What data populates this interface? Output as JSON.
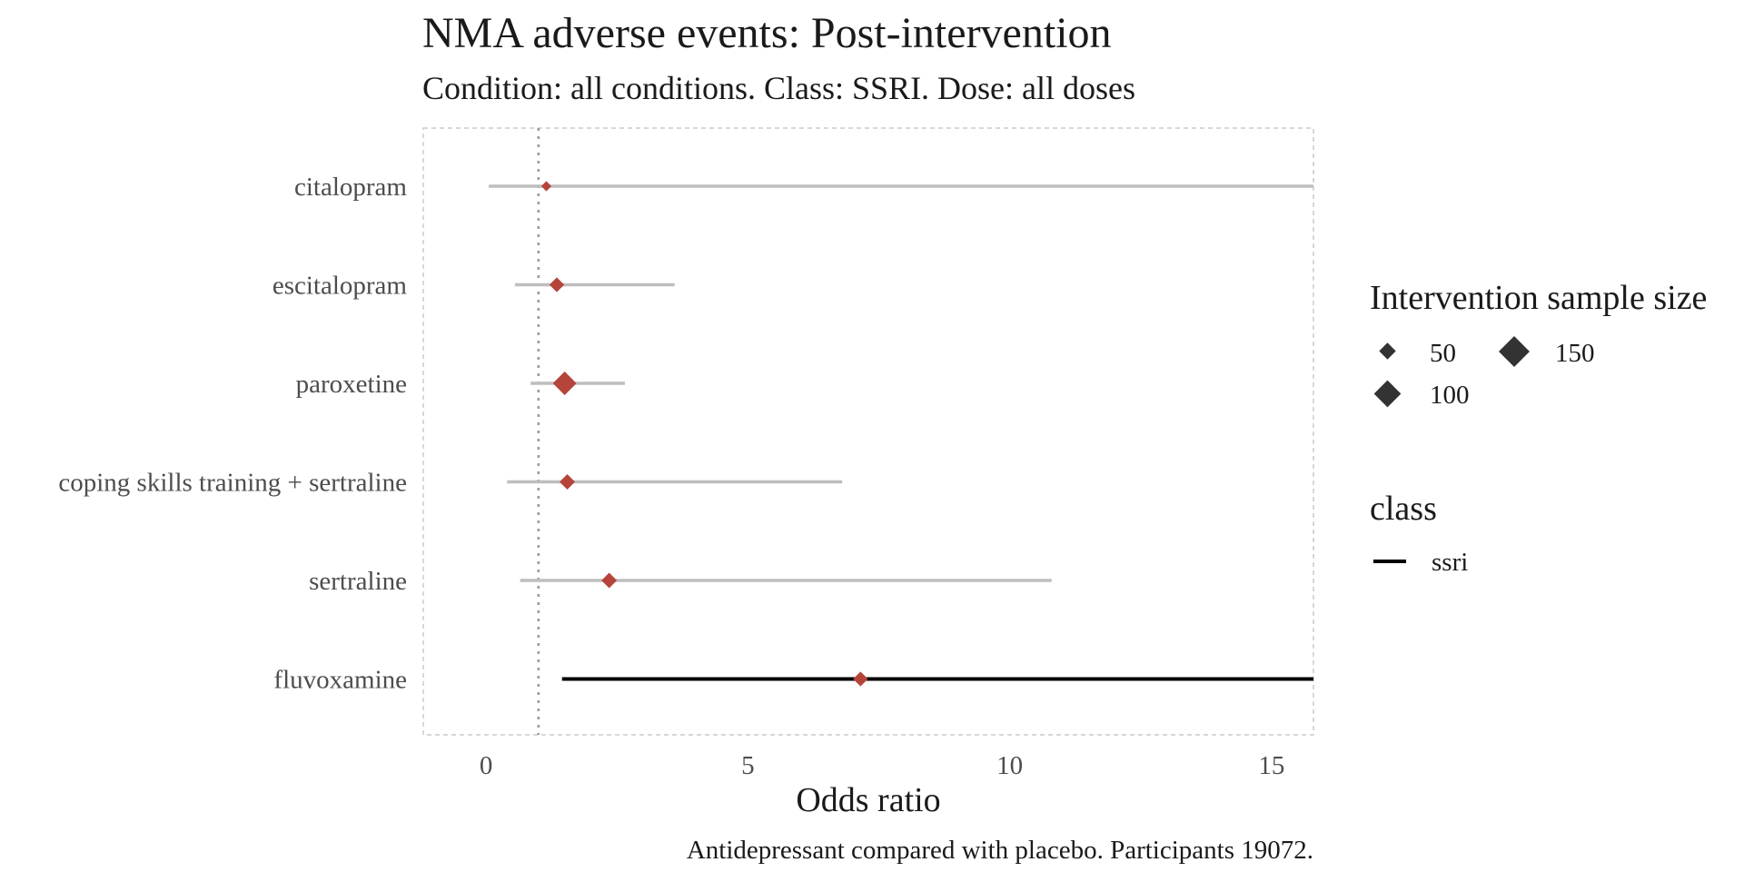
{
  "chart_data": {
    "type": "scatter",
    "title": "NMA adverse events: Post-intervention",
    "subtitle": "Condition: all conditions. Class: SSRI. Dose: all doses",
    "xlabel": "Odds ratio",
    "caption": "Antidepressant compared with placebo. Participants 19072.",
    "xlim": [
      -1.2,
      15.8
    ],
    "xticks": [
      0,
      5,
      10,
      15
    ],
    "reference_line": 1,
    "grid": false,
    "colors": {
      "point": "#b5443a",
      "ci_default": "#bebebe",
      "ci_highlight": "#000000",
      "ref_line": "#999999",
      "panel_border": "#cccccc"
    },
    "rows": [
      {
        "label": "citalopram",
        "estimate": 1.15,
        "lower": 0.05,
        "upper": 15.8,
        "n": 10,
        "highlight": false
      },
      {
        "label": "escitalopram",
        "estimate": 1.35,
        "lower": 0.55,
        "upper": 3.6,
        "n": 40,
        "highlight": false
      },
      {
        "label": "paroxetine",
        "estimate": 1.5,
        "lower": 0.85,
        "upper": 2.65,
        "n": 150,
        "highlight": false
      },
      {
        "label": "coping skills training + sertraline",
        "estimate": 1.55,
        "lower": 0.4,
        "upper": 6.8,
        "n": 45,
        "highlight": false
      },
      {
        "label": "sertraline",
        "estimate": 2.35,
        "lower": 0.65,
        "upper": 10.8,
        "n": 45,
        "highlight": false
      },
      {
        "label": "fluvoxamine",
        "estimate": 7.15,
        "lower": 1.45,
        "upper": 15.8,
        "n": 40,
        "highlight": true
      }
    ],
    "legend": {
      "placement": "right",
      "size": {
        "title": "Intervention sample size",
        "entries": [
          {
            "label": "50",
            "n": 50
          },
          {
            "label": "100",
            "n": 100
          },
          {
            "label": "150",
            "n": 150
          }
        ]
      },
      "class": {
        "title": "class",
        "entries": [
          {
            "label": "ssri"
          }
        ]
      }
    }
  }
}
